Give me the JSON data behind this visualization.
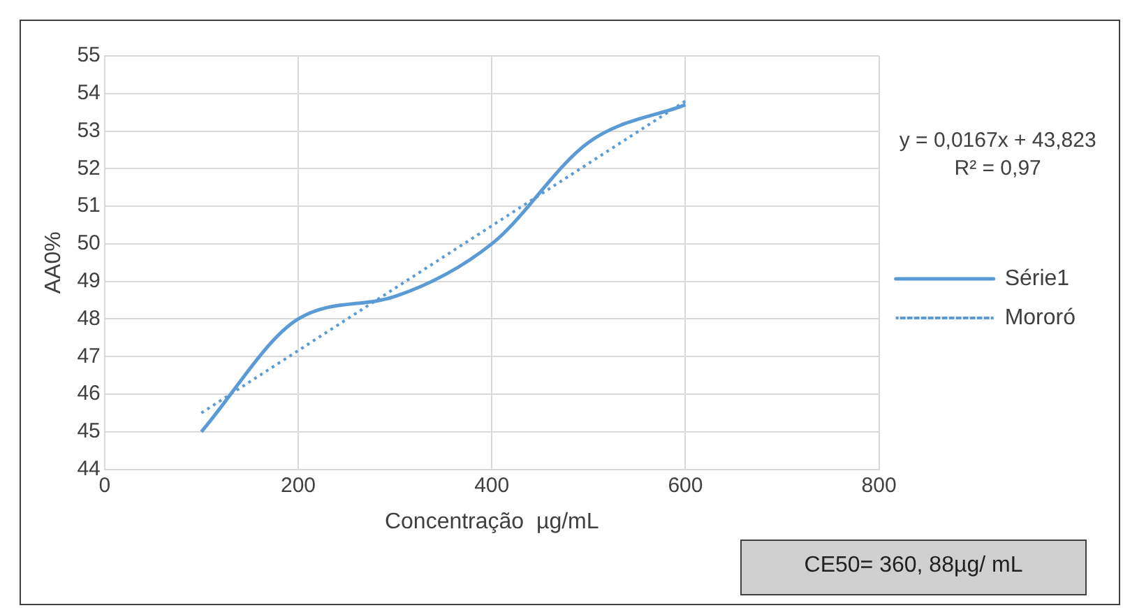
{
  "chart_data": {
    "type": "line",
    "xlabel": "Concentração  µg/mL",
    "ylabel": "AA0%",
    "x": [
      100,
      200,
      300,
      400,
      500,
      600
    ],
    "series": [
      {
        "name": "Série1",
        "color": "#5b9bd5",
        "values": [
          45,
          48,
          48.6,
          50,
          52.7,
          53.7
        ],
        "line_style": "solid"
      },
      {
        "name": "Mororó",
        "type": "line",
        "color": "#5b9bd5",
        "x": [
          100,
          600
        ],
        "values": [
          45.5,
          53.8
        ],
        "line_style": "dotted"
      }
    ],
    "xlim": [
      0,
      800
    ],
    "xticks": [
      0,
      200,
      400,
      600,
      800
    ],
    "ylim": [
      44,
      55
    ],
    "yticks": [
      44,
      45,
      46,
      47,
      48,
      49,
      50,
      51,
      52,
      53,
      54,
      55
    ],
    "grid": true,
    "legend": "right",
    "marker": "none",
    "annotations": [
      "y = 0,0167x + 43,823",
      "R² = 0,97",
      "CE50= 360, 88µg/ mL"
    ]
  }
}
